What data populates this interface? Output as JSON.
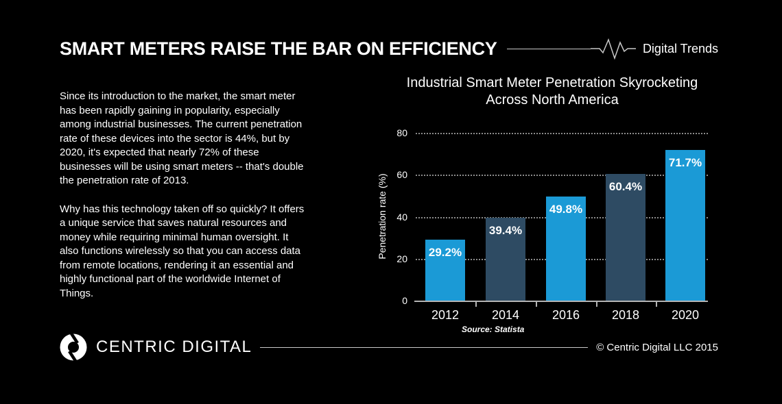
{
  "header": {
    "title": "SMART METERS RAISE THE BAR ON EFFICIENCY",
    "brand": "Digital Trends"
  },
  "body": {
    "paragraph1": "Since its introduction to the market, the smart meter has been rapidly gaining in popularity, especially among industrial businesses. The current penetration rate of these devices into the sector is 44%, but by 2020, it's expected that nearly 72% of these businesses will be using smart meters -- that's double the penetration rate of 2013.",
    "paragraph2": "Why has this technology taken off so quickly? It offers a unique service that saves natural resources and money while requiring minimal human oversight. It also functions wirelessly so that you can access data from remote locations, rendering it an essential and highly functional part of the worldwide Internet of Things."
  },
  "chart_data": {
    "type": "bar",
    "title": "Industrial Smart Meter Penetration Skyrocketing Across North America",
    "title_lines": [
      "Industrial Smart Meter Penetration Skyrocketing",
      "Across North America"
    ],
    "categories": [
      "2012",
      "2014",
      "2016",
      "2018",
      "2020"
    ],
    "values": [
      29.2,
      39.4,
      49.8,
      60.4,
      71.7
    ],
    "value_labels": [
      "29.2%",
      "39.4%",
      "49.8%",
      "60.4%",
      "71.7%"
    ],
    "xlabel": "",
    "ylabel": "Penetration rate (%)",
    "ylim": [
      0,
      80
    ],
    "yticks": [
      0,
      20,
      40,
      60,
      80
    ],
    "grid": "horizontal-dotted",
    "legend": "none",
    "source": "Source: Statista",
    "bar_colors": [
      "#1b9ad6",
      "#2e4b63",
      "#1b9ad6",
      "#2e4b63",
      "#1b9ad6"
    ]
  },
  "footer": {
    "logo_text": "CENTRIC DIGITAL",
    "copyright": "© Centric Digital LLC 2015"
  },
  "colors": {
    "background": "#000000",
    "text": "#ffffff",
    "accent_blue": "#1b9ad6",
    "accent_navy": "#2e4b63",
    "rule_gray": "#c9c9c9",
    "axis_gray": "#b5b5b5",
    "grid_gray": "#8d8d8d"
  }
}
